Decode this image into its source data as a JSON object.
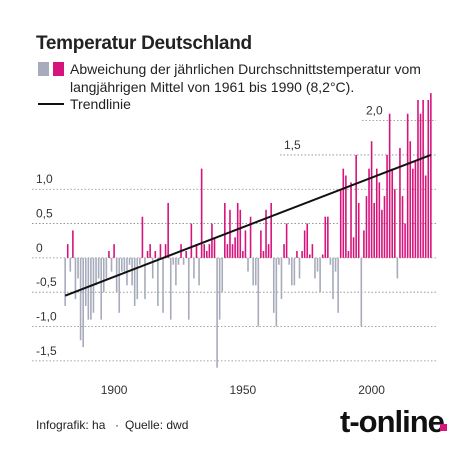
{
  "chart_data": {
    "type": "bar",
    "title": "Temperatur Deutschland",
    "legend_label": "Abweichung der jährlichen Durchschnittstemperatur vom langjährigen Mittel von 1961 bis 1990 (8,2°C).",
    "positive_color": "#d6157c",
    "negative_color": "#a7abbb",
    "x": [
      1881,
      1882,
      1883,
      1884,
      1885,
      1886,
      1887,
      1888,
      1889,
      1890,
      1891,
      1892,
      1893,
      1894,
      1895,
      1896,
      1897,
      1898,
      1899,
      1900,
      1901,
      1902,
      1903,
      1904,
      1905,
      1906,
      1907,
      1908,
      1909,
      1910,
      1911,
      1912,
      1913,
      1914,
      1915,
      1916,
      1917,
      1918,
      1919,
      1920,
      1921,
      1922,
      1923,
      1924,
      1925,
      1926,
      1927,
      1928,
      1929,
      1930,
      1931,
      1932,
      1933,
      1934,
      1935,
      1936,
      1937,
      1938,
      1939,
      1940,
      1941,
      1942,
      1943,
      1944,
      1945,
      1946,
      1947,
      1948,
      1949,
      1950,
      1951,
      1952,
      1953,
      1954,
      1955,
      1956,
      1957,
      1958,
      1959,
      1960,
      1961,
      1962,
      1963,
      1964,
      1965,
      1966,
      1967,
      1968,
      1969,
      1970,
      1971,
      1972,
      1973,
      1974,
      1975,
      1976,
      1977,
      1978,
      1979,
      1980,
      1981,
      1982,
      1983,
      1984,
      1985,
      1986,
      1987,
      1988,
      1989,
      1990,
      1991,
      1992,
      1993,
      1994,
      1995,
      1996,
      1997,
      1998,
      1999,
      2000,
      2001,
      2002,
      2003,
      2004,
      2005,
      2006,
      2007,
      2008,
      2009,
      2010,
      2011,
      2012,
      2013,
      2014,
      2015,
      2016,
      2017,
      2018,
      2019,
      2020,
      2021,
      2022,
      2023
    ],
    "values": [
      -0.7,
      0.2,
      -0.2,
      0.4,
      -0.6,
      -0.3,
      -1.2,
      -1.3,
      -0.7,
      -0.9,
      -0.9,
      -0.8,
      -0.4,
      -0.3,
      -0.9,
      -0.5,
      -0.3,
      0.1,
      -0.2,
      0.2,
      -0.5,
      -0.8,
      -0.2,
      -0.2,
      -0.4,
      -0.1,
      -0.4,
      -0.7,
      -0.6,
      -0.1,
      0.6,
      -0.6,
      0.1,
      0.2,
      -0.3,
      0.1,
      -0.7,
      0.2,
      -0.8,
      0.2,
      0.8,
      -0.9,
      -0.1,
      -0.4,
      -0.1,
      0.2,
      -0.1,
      0.1,
      -0.9,
      0.5,
      -0.3,
      0.2,
      -0.4,
      1.3,
      0.2,
      0.1,
      0.2,
      0.5,
      0.3,
      -1.6,
      -0.9,
      -0.5,
      0.8,
      0.2,
      0.7,
      0.2,
      0.3,
      0.8,
      0.7,
      0.1,
      0.4,
      -0.2,
      0.6,
      -0.4,
      -0.4,
      -1.0,
      0.4,
      0.1,
      0.7,
      0.2,
      0.8,
      -0.8,
      -1.0,
      -0.1,
      -0.6,
      0.2,
      0.5,
      -0.1,
      -0.4,
      -0.4,
      0.1,
      -0.3,
      0.1,
      0.4,
      0.5,
      0.05,
      0.2,
      -0.3,
      -0.2,
      -0.5,
      0.05,
      0.6,
      0.6,
      -0.1,
      -0.6,
      -0.2,
      -0.8,
      1.0,
      1.3,
      1.2,
      0.1,
      1.1,
      0.3,
      1.5,
      0.8,
      -1.0,
      0.4,
      0.9,
      1.3,
      1.7,
      0.8,
      1.3,
      1.1,
      0.7,
      0.9,
      1.5,
      2.1,
      1.3,
      1.0,
      -0.3,
      1.6,
      0.9,
      0.5,
      2.1,
      1.7,
      1.3,
      1.4,
      2.3,
      2.1,
      2.3,
      1.2,
      2.3,
      2.4
    ],
    "trend": {
      "name": "Trendlinie",
      "color": "#111111",
      "x": [
        1881,
        2023
      ],
      "values": [
        -0.55,
        1.5
      ]
    },
    "xlim": [
      1879,
      2025
    ],
    "xticks": [
      1900,
      1950,
      2000
    ],
    "ylim": [
      -1.75,
      2.3
    ],
    "yticks": [
      {
        "value": -1.5,
        "label": "-1,5"
      },
      {
        "value": -1.0,
        "label": "-1,0"
      },
      {
        "value": -0.5,
        "label": "-0,5"
      },
      0,
      {
        "value": 0.5,
        "label": "0,5"
      },
      {
        "value": 1.0,
        "label": "1,0"
      },
      {
        "value": 1.5,
        "label": "1,5"
      },
      {
        "value": 2.0,
        "label": "2,0"
      }
    ],
    "grid": true
  },
  "footer": {
    "credit": "Infografik: ha",
    "source": "Quelle: dwd",
    "logo": "t-online"
  }
}
